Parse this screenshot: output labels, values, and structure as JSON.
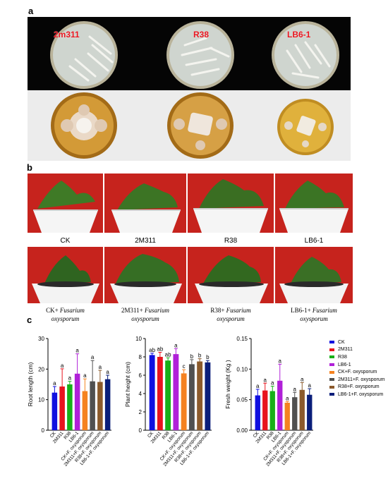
{
  "panels": {
    "a": "a",
    "b": "b",
    "c": "c"
  },
  "plates": [
    "2m311",
    "R38",
    "LB6-1"
  ],
  "pot_labels_top": [
    "CK",
    "2M311",
    "R38",
    "LB6-1"
  ],
  "pot_labels_bottom": [
    {
      "prefix": "CK+ ",
      "italic": "Fusarium",
      "line2": "oxysporum"
    },
    {
      "prefix": "2M311+ ",
      "italic": "Fusarium",
      "line2": "oxysporum"
    },
    {
      "prefix": "R38+ ",
      "italic": "Fusarium",
      "line2": "oxysporum"
    },
    {
      "prefix": "LB6-1+ ",
      "italic": "Fusarium",
      "line2": "oxysporum"
    }
  ],
  "colors": [
    "#1010e0",
    "#e8141e",
    "#18b018",
    "#b020d8",
    "#f58220",
    "#505050",
    "#8b5a2b",
    "#0a1e7a"
  ],
  "chart_data": [
    {
      "type": "bar",
      "categories": [
        "CK",
        "2M311",
        "R38",
        "LB6-1",
        "CK+F. oxysporum",
        "2M311+F. oxysporum",
        "R38+F. oxysporum",
        "LB6-1+F. oxysporum"
      ],
      "values": [
        12.3,
        14.3,
        15.0,
        18.5,
        12.8,
        16.0,
        15.8,
        16.7
      ],
      "errors": [
        2.0,
        5.8,
        1.0,
        6.5,
        4.0,
        6.8,
        3.8,
        1.3
      ],
      "letters": [
        "a",
        "a",
        "a",
        "a",
        "a",
        "a",
        "a",
        "a"
      ],
      "ylabel": "Root length (cm)",
      "ylim": [
        0,
        30
      ],
      "yticks": [
        0,
        10,
        20,
        30
      ]
    },
    {
      "type": "bar",
      "categories": [
        "CK",
        "2M311",
        "R38",
        "LB6-1",
        "CK+F. oxysporum",
        "2M311+F. oxysporum",
        "R38+F. oxysporum",
        "LB6-1+F. oxysporum"
      ],
      "values": [
        8.2,
        8.0,
        7.6,
        8.3,
        6.2,
        7.2,
        7.5,
        7.4
      ],
      "errors": [
        0.2,
        0.5,
        0.3,
        0.6,
        0.4,
        0.5,
        0.3,
        0.2
      ],
      "letters": [
        "ab",
        "ab",
        "ab",
        "a",
        "c",
        "b",
        "b",
        "b"
      ],
      "ylabel": "Plant height (cm)",
      "ylim": [
        0,
        10
      ],
      "yticks": [
        0,
        2,
        4,
        6,
        8,
        10
      ]
    },
    {
      "type": "bar",
      "categories": [
        "CK",
        "2M311",
        "R38",
        "LB6-1",
        "CK+F. oxysporum",
        "2M311+F. oxysporum",
        "R38+F. oxysporum",
        "LB6-1+F. oxysporum"
      ],
      "values": [
        0.057,
        0.065,
        0.064,
        0.081,
        0.045,
        0.054,
        0.066,
        0.058
      ],
      "errors": [
        0.01,
        0.012,
        0.008,
        0.027,
        0.002,
        0.008,
        0.012,
        0.01
      ],
      "letters": [
        "a",
        "a",
        "a",
        "a",
        "a",
        "a",
        "a",
        "a"
      ],
      "ylabel": "Fresh weight (Kg )",
      "ylim": [
        0,
        0.15
      ],
      "yticks": [
        "0.00",
        "0.05",
        "0.10",
        "0.15"
      ]
    }
  ],
  "legend": [
    "CK",
    "2M311",
    "R38",
    "LB6-1",
    "CK+F. oxysporum",
    "2M311+F. oxysporum",
    "R38+F. oxysporum",
    "LB6-1+F. oxysporum"
  ]
}
